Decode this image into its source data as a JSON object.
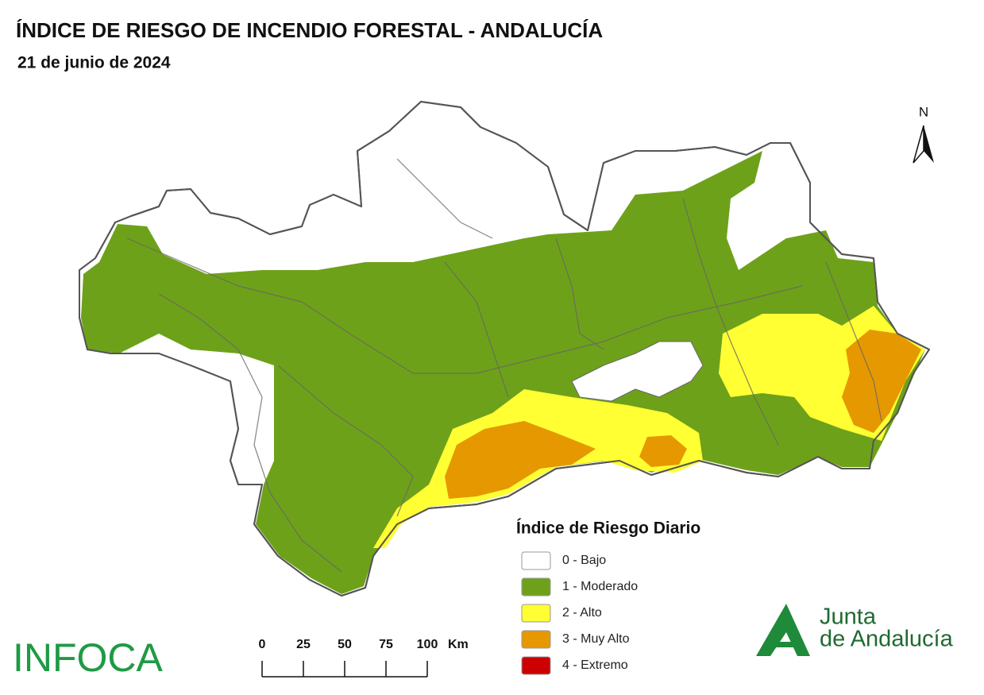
{
  "title": "ÍNDICE DE RIESGO DE INCENDIO FORESTAL - ANDALUCÍA",
  "date": "21 de junio de 2024",
  "north": "N",
  "legend": {
    "title": "Índice de Riesgo Diario",
    "items": [
      {
        "label": "0 - Bajo",
        "color": "#ffffff"
      },
      {
        "label": "1 - Moderado",
        "color": "#6ea11a"
      },
      {
        "label": "2 - Alto",
        "color": "#ffff33"
      },
      {
        "label": "3 - Muy Alto",
        "color": "#e69800"
      },
      {
        "label": "4 - Extremo",
        "color": "#cc0000"
      }
    ]
  },
  "scale_bar": {
    "ticks": [
      0,
      25,
      50,
      75,
      100
    ],
    "unit": "Km"
  },
  "logos": {
    "left": "INFOCA",
    "right_line1": "Junta",
    "right_line2": "de Andalucía"
  }
}
